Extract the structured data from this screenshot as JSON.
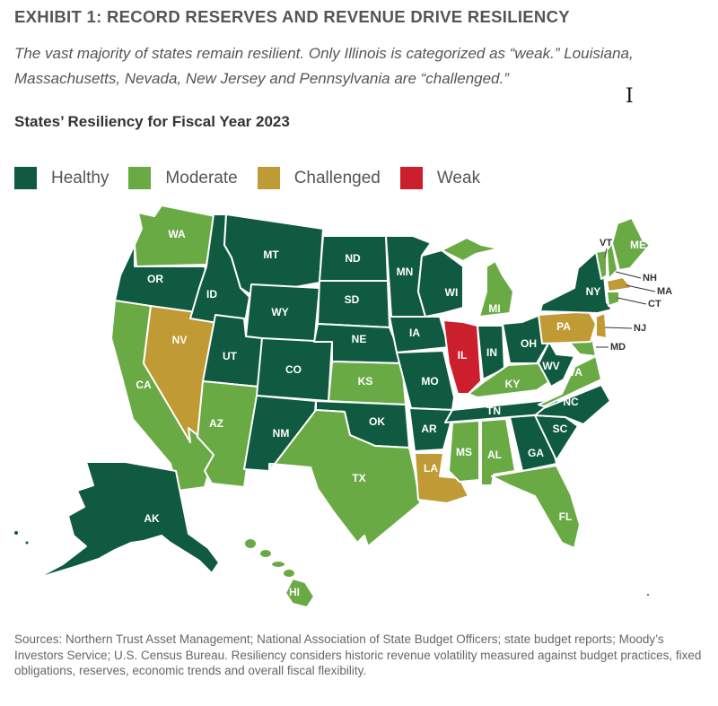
{
  "exhibit_title": "EXHIBIT 1: RECORD RESERVES AND REVENUE DRIVE RESILIENCY",
  "subtitle": "The vast majority of states remain resilient. Only Illinois is categorized as “weak.” Louisiana, Massachusetts, Nevada, New Jersey and Pennsylvania are “challenged.”",
  "map_title": "States’ Resiliency for Fiscal Year 2023",
  "legend": [
    {
      "key": "healthy",
      "label": "Healthy",
      "color": "#0f5a40"
    },
    {
      "key": "moderate",
      "label": "Moderate",
      "color": "#6aaa45"
    },
    {
      "key": "challenged",
      "label": "Challenged",
      "color": "#c09a35"
    },
    {
      "key": "weak",
      "label": "Weak",
      "color": "#cc1f2e"
    }
  ],
  "states": [
    {
      "code": "WA",
      "category": "moderate"
    },
    {
      "code": "OR",
      "category": "healthy"
    },
    {
      "code": "CA",
      "category": "moderate"
    },
    {
      "code": "NV",
      "category": "challenged"
    },
    {
      "code": "ID",
      "category": "healthy"
    },
    {
      "code": "MT",
      "category": "healthy"
    },
    {
      "code": "WY",
      "category": "healthy"
    },
    {
      "code": "UT",
      "category": "healthy"
    },
    {
      "code": "AZ",
      "category": "moderate"
    },
    {
      "code": "CO",
      "category": "healthy"
    },
    {
      "code": "NM",
      "category": "healthy"
    },
    {
      "code": "ND",
      "category": "healthy"
    },
    {
      "code": "SD",
      "category": "healthy"
    },
    {
      "code": "NE",
      "category": "healthy"
    },
    {
      "code": "KS",
      "category": "moderate"
    },
    {
      "code": "OK",
      "category": "healthy"
    },
    {
      "code": "TX",
      "category": "moderate"
    },
    {
      "code": "MN",
      "category": "healthy"
    },
    {
      "code": "IA",
      "category": "healthy"
    },
    {
      "code": "MO",
      "category": "healthy"
    },
    {
      "code": "AR",
      "category": "healthy"
    },
    {
      "code": "LA",
      "category": "challenged"
    },
    {
      "code": "WI",
      "category": "healthy"
    },
    {
      "code": "IL",
      "category": "weak"
    },
    {
      "code": "MI",
      "category": "moderate"
    },
    {
      "code": "IN",
      "category": "healthy"
    },
    {
      "code": "OH",
      "category": "healthy"
    },
    {
      "code": "KY",
      "category": "moderate"
    },
    {
      "code": "TN",
      "category": "healthy"
    },
    {
      "code": "MS",
      "category": "moderate"
    },
    {
      "code": "AL",
      "category": "moderate"
    },
    {
      "code": "GA",
      "category": "healthy"
    },
    {
      "code": "FL",
      "category": "moderate"
    },
    {
      "code": "SC",
      "category": "healthy"
    },
    {
      "code": "NC",
      "category": "healthy"
    },
    {
      "code": "VA",
      "category": "moderate"
    },
    {
      "code": "WV",
      "category": "healthy"
    },
    {
      "code": "MD",
      "category": "moderate"
    },
    {
      "code": "PA",
      "category": "challenged"
    },
    {
      "code": "NJ",
      "category": "challenged"
    },
    {
      "code": "NY",
      "category": "healthy"
    },
    {
      "code": "VT",
      "category": "moderate"
    },
    {
      "code": "NH",
      "category": "moderate"
    },
    {
      "code": "ME",
      "category": "moderate"
    },
    {
      "code": "MA",
      "category": "challenged"
    },
    {
      "code": "CT",
      "category": "moderate"
    },
    {
      "code": "AK",
      "category": "healthy"
    },
    {
      "code": "HI",
      "category": "moderate"
    }
  ],
  "sources": "Sources: Northern Trust Asset Management; National Association of State Budget Officers; state budget reports; Moody’s Investors Service; U.S. Census Bureau. Resiliency considers historic revenue volatility measured against budget practices, fixed obligations, reserves, economic trends and overall fiscal flexibility."
}
